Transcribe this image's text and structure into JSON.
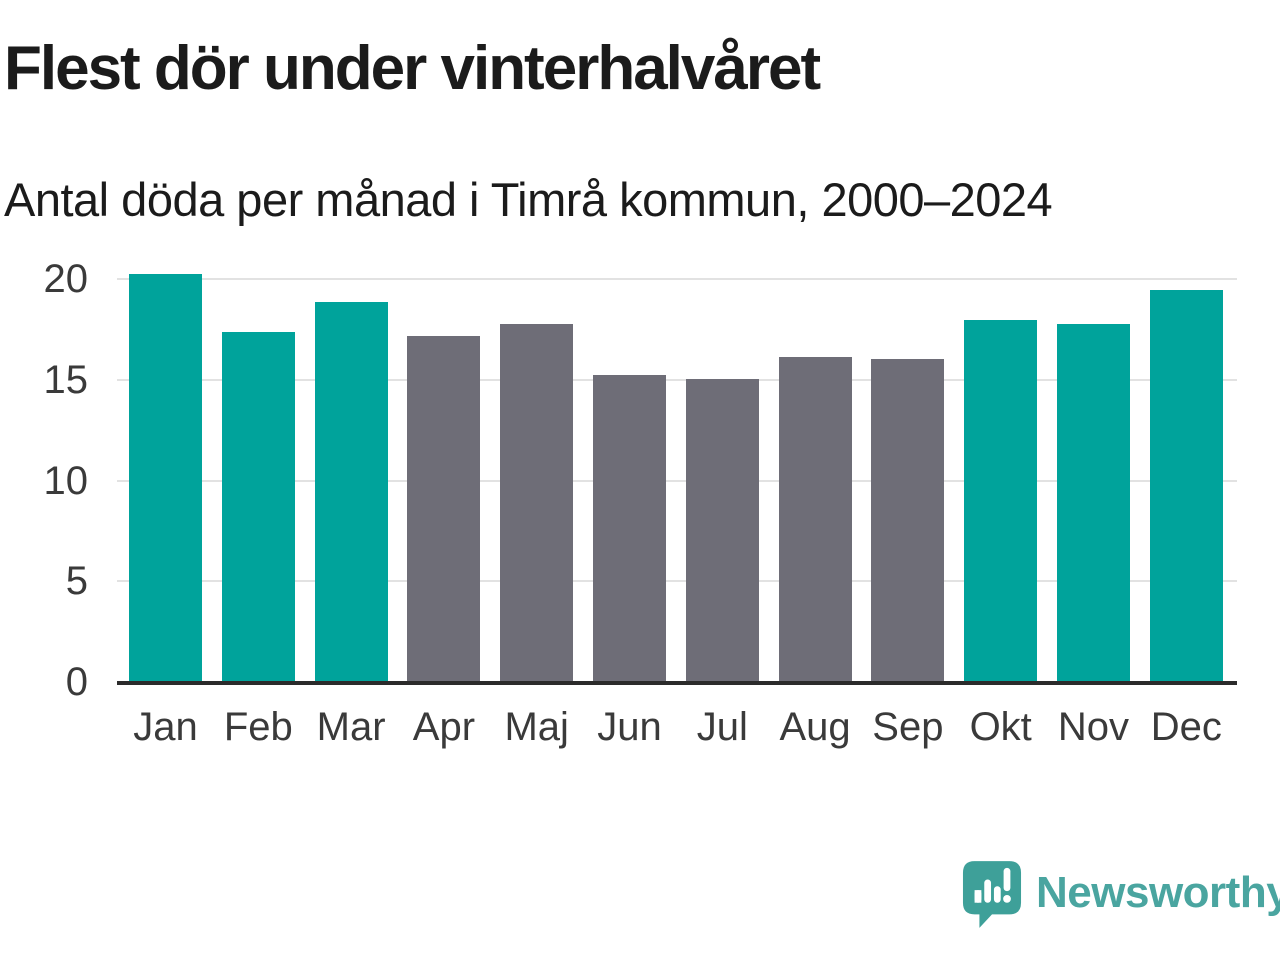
{
  "header": {
    "title": "Flest dör under vinterhalvåret",
    "subtitle": "Antal döda per månad i Timrå kommun, 2000–2024"
  },
  "chart_data": {
    "type": "bar",
    "title": "Flest dör under vinterhalvåret",
    "subtitle": "Antal döda per månad i Timrå kommun, 2000–2024",
    "categories": [
      "Jan",
      "Feb",
      "Mar",
      "Apr",
      "Maj",
      "Jun",
      "Jul",
      "Aug",
      "Sep",
      "Okt",
      "Nov",
      "Dec"
    ],
    "values": [
      20.3,
      17.4,
      18.9,
      17.2,
      17.8,
      15.3,
      15.1,
      16.2,
      16.1,
      18.0,
      17.8,
      19.5
    ],
    "bar_groups": [
      "winter",
      "winter",
      "winter",
      "summer",
      "summer",
      "summer",
      "summer",
      "summer",
      "summer",
      "winter",
      "winter",
      "winter"
    ],
    "palette": {
      "winter": "#00A39B",
      "summer": "#6E6D77"
    },
    "yticks": [
      0,
      5,
      10,
      15,
      20
    ],
    "ylim": [
      0,
      20.5
    ],
    "grid": true,
    "legend_position": "none",
    "xlabel": "",
    "ylabel": ""
  },
  "footer": {
    "brand_name": "Newsworthy",
    "brand_text_color": "#4AA5A0",
    "logo_color": "#3EA099",
    "logo_icon": "bar-chart-speech-bubble"
  },
  "colors": {
    "background": "#FFFFFF",
    "title_text": "#1B1B1B",
    "axis_line": "#2B2B2B",
    "gridline": "#E2E2E2",
    "tick_text": "#3A3A3A"
  }
}
